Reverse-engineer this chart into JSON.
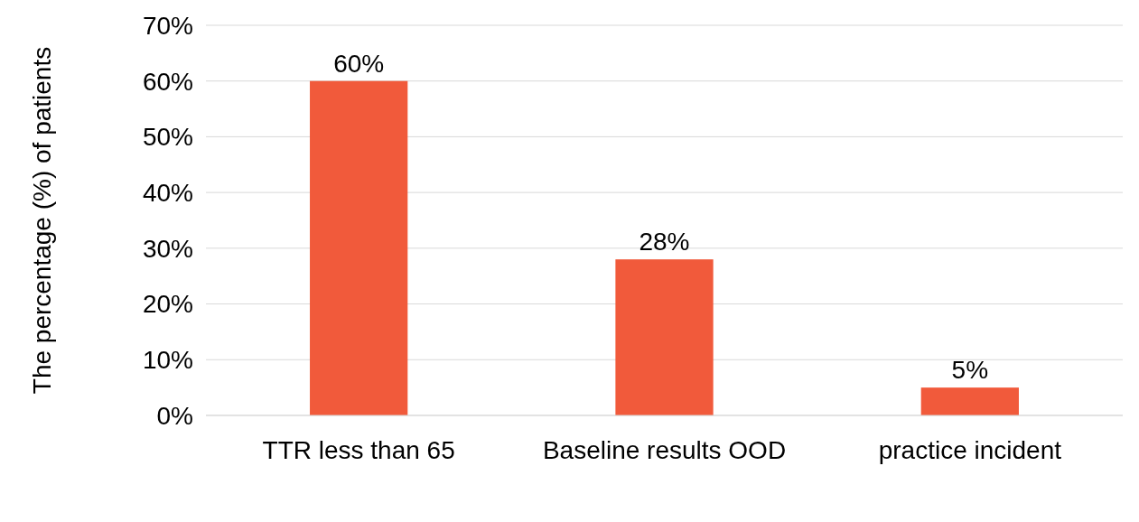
{
  "chart_data": {
    "type": "bar",
    "ylabel": "The percentage (%) of patients",
    "categories": [
      "TTR less than 65",
      "Baseline results OOD",
      "practice incident"
    ],
    "values": [
      60,
      28,
      5
    ],
    "color": "#f15a3b",
    "value_labels": [
      "60%",
      "28%",
      "5%"
    ],
    "ylim": [
      0,
      70
    ],
    "yticks": [
      {
        "value": 0,
        "label": "0%"
      },
      {
        "value": 10,
        "label": "10%"
      },
      {
        "value": 20,
        "label": "20%"
      },
      {
        "value": 30,
        "label": "30%"
      },
      {
        "value": 40,
        "label": "40%"
      },
      {
        "value": 50,
        "label": "50%"
      },
      {
        "value": 60,
        "label": "60%"
      },
      {
        "value": 70,
        "label": "70%"
      }
    ],
    "grid": "y"
  }
}
